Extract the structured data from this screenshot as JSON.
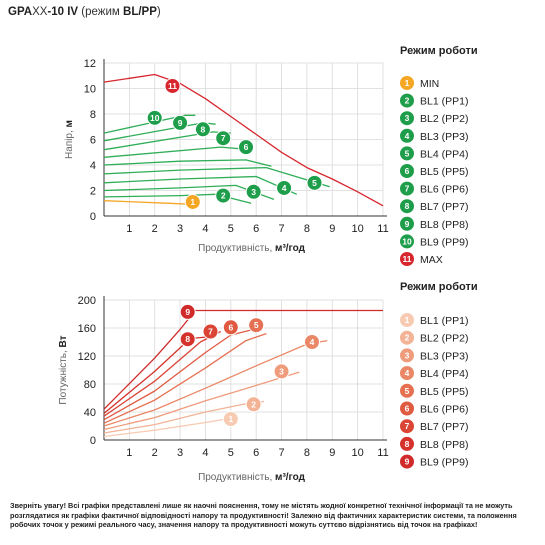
{
  "header": {
    "model_a": "GPA",
    "model_b": "XX",
    "model_c": "-10 IV",
    "mode_prefix": " (режим ",
    "mode_value": "BL/PP",
    "mode_suffix": ")"
  },
  "colors": {
    "green": "#1e9e4a",
    "green_line": "#2fae57",
    "min": "#f5a623",
    "max": "#d7262e"
  },
  "chart_data": [
    {
      "type": "line",
      "xlabel_prefix": "Продуктивність, ",
      "xlabel_unit": "м³/год",
      "ylabel_prefix": "Напір, ",
      "ylabel_unit": "м",
      "xlim": [
        0,
        11
      ],
      "ylim": [
        0,
        12
      ],
      "xticks": [
        1,
        2,
        3,
        4,
        5,
        6,
        7,
        8,
        9,
        10,
        11
      ],
      "yticks": [
        0,
        2,
        4,
        6,
        8,
        10,
        12
      ],
      "legend_title": "Режим роботи",
      "grid": true,
      "series": [
        {
          "id": "1",
          "name": "MIN",
          "color": "#f5a623",
          "x": [
            0,
            2.6,
            3.6
          ],
          "y": [
            1.2,
            1.0,
            0.9
          ]
        },
        {
          "id": "2",
          "name": "BL1 (PP1)",
          "color": "#2fae57",
          "x": [
            0,
            3.0,
            4.4,
            5.8
          ],
          "y": [
            1.5,
            1.6,
            1.7,
            1.0
          ]
        },
        {
          "id": "3",
          "name": "BL2 (PP2)",
          "color": "#2fae57",
          "x": [
            0,
            3.0,
            5.2,
            6.7
          ],
          "y": [
            2.0,
            2.2,
            2.4,
            1.3
          ]
        },
        {
          "id": "4",
          "name": "BL3 (PP3)",
          "color": "#2fae57",
          "x": [
            0,
            3.0,
            6.0,
            7.6
          ],
          "y": [
            2.6,
            2.9,
            3.1,
            1.7
          ]
        },
        {
          "id": "5",
          "name": "BL4 (PP4)",
          "color": "#2fae57",
          "x": [
            0,
            3.0,
            6.4,
            8.9
          ],
          "y": [
            3.3,
            3.6,
            3.8,
            2.3
          ]
        },
        {
          "id": "6",
          "name": "BL5 (PP5)",
          "color": "#2fae57",
          "x": [
            0,
            3.0,
            5.6,
            6.6
          ],
          "y": [
            4.0,
            4.3,
            4.4,
            3.9
          ]
        },
        {
          "id": "7",
          "name": "BL6 (PP6)",
          "color": "#2fae57",
          "x": [
            0,
            4.6,
            5.8
          ],
          "y": [
            4.6,
            5.4,
            5.2
          ]
        },
        {
          "id": "8",
          "name": "BL7 (PP7)",
          "color": "#2fae57",
          "x": [
            0,
            4.3,
            5.0
          ],
          "y": [
            5.2,
            6.6,
            6.5
          ]
        },
        {
          "id": "9",
          "name": "BL8 (PP8)",
          "color": "#2fae57",
          "x": [
            0,
            3.9,
            4.4
          ],
          "y": [
            5.9,
            7.3,
            7.2
          ]
        },
        {
          "id": "10",
          "name": "BL9 (PP9)",
          "color": "#2fae57",
          "x": [
            0,
            3.2,
            3.6
          ],
          "y": [
            6.5,
            7.9,
            7.9
          ]
        },
        {
          "id": "11",
          "name": "MAX",
          "color": "#d7262e",
          "x": [
            0,
            1.0,
            2.0,
            3.0,
            4.0,
            5.0,
            6.0,
            7.0,
            8.0,
            9.0,
            10.0,
            11.0
          ],
          "y": [
            10.5,
            10.8,
            11.1,
            10.4,
            9.2,
            7.8,
            6.4,
            5.0,
            3.8,
            2.9,
            1.9,
            0.8
          ]
        }
      ],
      "badges": [
        {
          "label": "1",
          "x": 3.5,
          "y": 1.1,
          "color": "#f5a623"
        },
        {
          "label": "2",
          "x": 4.7,
          "y": 1.6,
          "color": "#1e9e4a"
        },
        {
          "label": "3",
          "x": 5.9,
          "y": 1.9,
          "color": "#1e9e4a"
        },
        {
          "label": "4",
          "x": 7.1,
          "y": 2.2,
          "color": "#1e9e4a"
        },
        {
          "label": "5",
          "x": 8.3,
          "y": 2.6,
          "color": "#1e9e4a"
        },
        {
          "label": "6",
          "x": 5.6,
          "y": 5.4,
          "color": "#1e9e4a"
        },
        {
          "label": "7",
          "x": 4.7,
          "y": 6.1,
          "color": "#1e9e4a"
        },
        {
          "label": "8",
          "x": 3.9,
          "y": 6.8,
          "color": "#1e9e4a"
        },
        {
          "label": "9",
          "x": 3.0,
          "y": 7.3,
          "color": "#1e9e4a"
        },
        {
          "label": "10",
          "x": 2.0,
          "y": 7.7,
          "color": "#1e9e4a"
        },
        {
          "label": "11",
          "x": 2.7,
          "y": 10.2,
          "color": "#d7262e"
        }
      ]
    },
    {
      "type": "line",
      "xlabel_prefix": "Продуктивність, ",
      "xlabel_unit": "м³/год",
      "ylabel_prefix": "Потужність, ",
      "ylabel_unit": "Вт",
      "xlim": [
        0,
        11
      ],
      "ylim": [
        0,
        200
      ],
      "xticks": [
        1,
        2,
        3,
        4,
        5,
        6,
        7,
        8,
        9,
        10,
        11
      ],
      "yticks": [
        0,
        40,
        80,
        120,
        160,
        200
      ],
      "legend_title": "Режим роботи",
      "grid": true,
      "series": [
        {
          "id": "1",
          "name": "BL1 (PP1)",
          "color": "#f7cbb2",
          "x": [
            0,
            2.0,
            4.0,
            5.0,
            5.3
          ],
          "y": [
            5,
            14,
            25,
            31,
            33
          ]
        },
        {
          "id": "2",
          "name": "BL2 (PP2)",
          "color": "#f3b396",
          "x": [
            0,
            2.0,
            4.0,
            5.5,
            6.3
          ],
          "y": [
            10,
            22,
            40,
            51,
            55
          ]
        },
        {
          "id": "3",
          "name": "BL3 (PP3)",
          "color": "#ef9c7d",
          "x": [
            0,
            2.0,
            4.0,
            6.0,
            7.7
          ],
          "y": [
            15,
            32,
            56,
            78,
            97
          ]
        },
        {
          "id": "4",
          "name": "BL4 (PP4)",
          "color": "#ea8766",
          "x": [
            0,
            2.0,
            4.0,
            6.0,
            8.0,
            8.8
          ],
          "y": [
            20,
            43,
            74,
            106,
            137,
            142
          ]
        },
        {
          "id": "5",
          "name": "BL5 (PP5)",
          "color": "#e57052",
          "x": [
            0,
            2.0,
            4.0,
            5.6,
            6.4
          ],
          "y": [
            24,
            57,
            103,
            142,
            152
          ]
        },
        {
          "id": "6",
          "name": "BL6 (PP6)",
          "color": "#e05a42",
          "x": [
            0,
            2.0,
            4.0,
            5.0,
            5.9
          ],
          "y": [
            29,
            70,
            125,
            150,
            158
          ]
        },
        {
          "id": "7",
          "name": "BL7 (PP7)",
          "color": "#da4535",
          "x": [
            0,
            2.0,
            3.8,
            4.6
          ],
          "y": [
            34,
            84,
            140,
            155
          ]
        },
        {
          "id": "8",
          "name": "BL8 (PP8)",
          "color": "#d5322c",
          "x": [
            0,
            2.0,
            3.4,
            4.0
          ],
          "y": [
            38,
            98,
            145,
            147
          ]
        },
        {
          "id": "9",
          "name": "BL9 (PP9)",
          "color": "#d12a2a",
          "x": [
            0,
            2.0,
            3.0,
            3.6,
            11.0
          ],
          "y": [
            44,
            117,
            158,
            185,
            185
          ]
        }
      ],
      "badges": [
        {
          "label": "1",
          "x": 5.0,
          "y": 30,
          "color": "#f7cbb2"
        },
        {
          "label": "2",
          "x": 5.9,
          "y": 51,
          "color": "#f3b396"
        },
        {
          "label": "3",
          "x": 7.0,
          "y": 98,
          "color": "#ef9c7d"
        },
        {
          "label": "4",
          "x": 8.2,
          "y": 140,
          "color": "#ea8766"
        },
        {
          "label": "5",
          "x": 6.0,
          "y": 164,
          "color": "#e57052"
        },
        {
          "label": "6",
          "x": 5.0,
          "y": 161,
          "color": "#e05a42"
        },
        {
          "label": "7",
          "x": 4.2,
          "y": 155,
          "color": "#da4535"
        },
        {
          "label": "8",
          "x": 3.3,
          "y": 144,
          "color": "#d5322c"
        },
        {
          "label": "9",
          "x": 3.3,
          "y": 183,
          "color": "#d12a2a"
        }
      ]
    }
  ],
  "legend1": [
    {
      "id": "1",
      "label": "MIN",
      "color": "#f5a623"
    },
    {
      "id": "2",
      "label": "BL1 (PP1)",
      "color": "#1e9e4a"
    },
    {
      "id": "3",
      "label": "BL2 (PP2)",
      "color": "#1e9e4a"
    },
    {
      "id": "4",
      "label": "BL3 (PP3)",
      "color": "#1e9e4a"
    },
    {
      "id": "5",
      "label": "BL4 (PP4)",
      "color": "#1e9e4a"
    },
    {
      "id": "6",
      "label": "BL5 (PP5)",
      "color": "#1e9e4a"
    },
    {
      "id": "7",
      "label": "BL6 (PP6)",
      "color": "#1e9e4a"
    },
    {
      "id": "8",
      "label": "BL7 (PP7)",
      "color": "#1e9e4a"
    },
    {
      "id": "9",
      "label": "BL8 (PP8)",
      "color": "#1e9e4a"
    },
    {
      "id": "10",
      "label": "BL9 (PP9)",
      "color": "#1e9e4a"
    },
    {
      "id": "11",
      "label": "MAX",
      "color": "#d7262e"
    }
  ],
  "legend2": [
    {
      "id": "1",
      "label": "BL1 (PP1)",
      "color": "#f7cbb2"
    },
    {
      "id": "2",
      "label": "BL2 (PP2)",
      "color": "#f3b396"
    },
    {
      "id": "3",
      "label": "BL3 (PP3)",
      "color": "#ef9c7d"
    },
    {
      "id": "4",
      "label": "BL4 (PP4)",
      "color": "#ea8766"
    },
    {
      "id": "5",
      "label": "BL5 (PP5)",
      "color": "#e57052"
    },
    {
      "id": "6",
      "label": "BL6 (PP6)",
      "color": "#e05a42"
    },
    {
      "id": "7",
      "label": "BL7 (PP7)",
      "color": "#da4535"
    },
    {
      "id": "8",
      "label": "BL8 (PP8)",
      "color": "#d5322c"
    },
    {
      "id": "9",
      "label": "BL9 (PP9)",
      "color": "#d12a2a"
    }
  ],
  "disclaimer": "Зверніть увагу! Всі графіки представлені лише як наочні пояснення, тому не містять жодної конкретної технічної інформації та не можуть розглядатися як графіки фактичної відповідності напору та продуктивності! Залежно від фактичних характеристик системи, та положення робочих точок у режимі реального часу, значення напору та продуктивності можуть суттєво відрізнятись від точок на графіках!"
}
